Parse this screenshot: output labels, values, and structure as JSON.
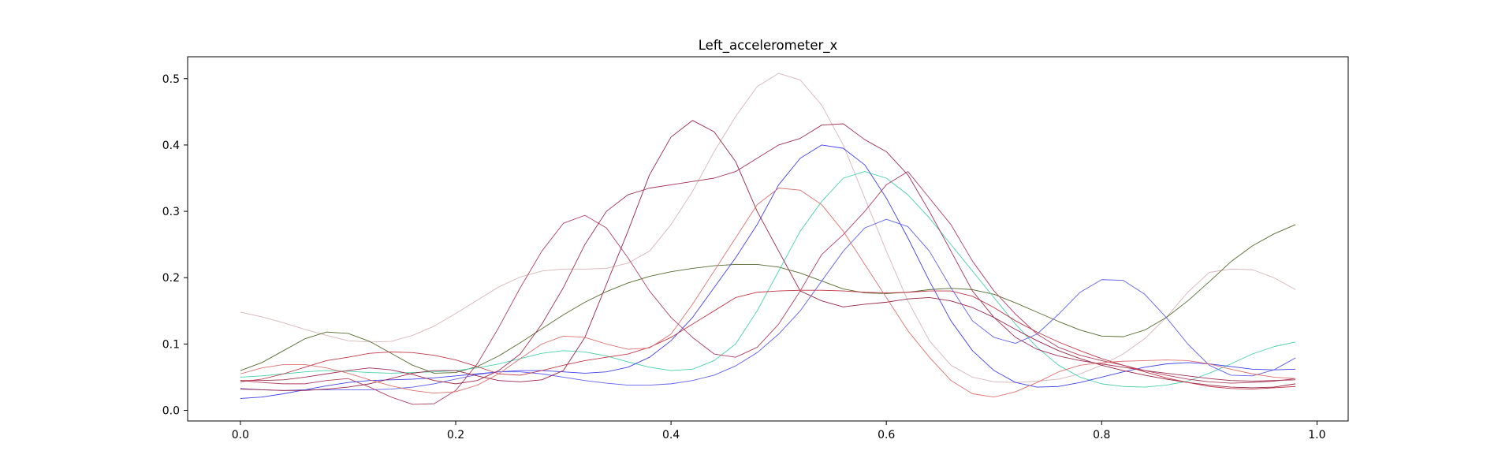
{
  "chart_data": {
    "type": "line",
    "title": "Left_accelerometer_x",
    "xlabel": "",
    "ylabel": "",
    "xlim": [
      -0.049,
      1.029
    ],
    "ylim": [
      -0.016,
      0.533
    ],
    "grid": false,
    "xticks": [
      0.0,
      0.2,
      0.4,
      0.6,
      0.8,
      1.0
    ],
    "xtick_labels": [
      "0.0",
      "0.2",
      "0.4",
      "0.6",
      "0.8",
      "1.0"
    ],
    "yticks": [
      0.0,
      0.1,
      0.2,
      0.3,
      0.4,
      0.5
    ],
    "ytick_labels": [
      "0.0",
      "0.1",
      "0.2",
      "0.3",
      "0.4",
      "0.5"
    ],
    "x": [
      0.0,
      0.02,
      0.04,
      0.06,
      0.08,
      0.1,
      0.12,
      0.14,
      0.16,
      0.18,
      0.2,
      0.22,
      0.24,
      0.26,
      0.28,
      0.3,
      0.32,
      0.34,
      0.36,
      0.38,
      0.4,
      0.42,
      0.44,
      0.46,
      0.48,
      0.5,
      0.52,
      0.54,
      0.56,
      0.58,
      0.6,
      0.62,
      0.64,
      0.66,
      0.68,
      0.7,
      0.72,
      0.74,
      0.76,
      0.78,
      0.8,
      0.82,
      0.84,
      0.86,
      0.88,
      0.9,
      0.92,
      0.94,
      0.96,
      0.98
    ],
    "series": [
      {
        "color": "#d8b4b8",
        "values": [
          0.148,
          0.141,
          0.132,
          0.122,
          0.113,
          0.105,
          0.103,
          0.104,
          0.113,
          0.127,
          0.146,
          0.166,
          0.186,
          0.201,
          0.21,
          0.213,
          0.213,
          0.214,
          0.222,
          0.24,
          0.28,
          0.33,
          0.39,
          0.443,
          0.488,
          0.508,
          0.498,
          0.46,
          0.4,
          0.32,
          0.24,
          0.165,
          0.105,
          0.068,
          0.05,
          0.043,
          0.042,
          0.044,
          0.047,
          0.055,
          0.068,
          0.085,
          0.108,
          0.14,
          0.178,
          0.208,
          0.213,
          0.212,
          0.2,
          0.182
        ]
      },
      {
        "color": "#556b2f",
        "values": [
          0.06,
          0.072,
          0.09,
          0.108,
          0.118,
          0.116,
          0.104,
          0.086,
          0.068,
          0.056,
          0.057,
          0.066,
          0.082,
          0.102,
          0.123,
          0.144,
          0.163,
          0.179,
          0.192,
          0.202,
          0.209,
          0.214,
          0.218,
          0.22,
          0.22,
          0.216,
          0.207,
          0.195,
          0.183,
          0.177,
          0.176,
          0.178,
          0.182,
          0.184,
          0.182,
          0.175,
          0.162,
          0.148,
          0.134,
          0.121,
          0.112,
          0.111,
          0.121,
          0.14,
          0.165,
          0.194,
          0.224,
          0.248,
          0.266,
          0.28
        ]
      },
      {
        "color": "#48d1a8",
        "values": [
          0.05,
          0.052,
          0.055,
          0.058,
          0.06,
          0.059,
          0.057,
          0.056,
          0.057,
          0.058,
          0.06,
          0.064,
          0.07,
          0.078,
          0.086,
          0.09,
          0.088,
          0.082,
          0.073,
          0.065,
          0.06,
          0.062,
          0.075,
          0.1,
          0.15,
          0.21,
          0.27,
          0.315,
          0.35,
          0.36,
          0.35,
          0.325,
          0.29,
          0.25,
          0.21,
          0.17,
          0.13,
          0.095,
          0.068,
          0.05,
          0.04,
          0.036,
          0.035,
          0.038,
          0.044,
          0.056,
          0.07,
          0.085,
          0.096,
          0.103
        ]
      },
      {
        "color": "#4040ee",
        "values": [
          0.018,
          0.02,
          0.025,
          0.031,
          0.037,
          0.042,
          0.045,
          0.046,
          0.047,
          0.049,
          0.052,
          0.055,
          0.058,
          0.06,
          0.06,
          0.058,
          0.056,
          0.058,
          0.065,
          0.08,
          0.105,
          0.14,
          0.185,
          0.23,
          0.28,
          0.34,
          0.38,
          0.4,
          0.395,
          0.37,
          0.32,
          0.26,
          0.195,
          0.135,
          0.09,
          0.06,
          0.042,
          0.035,
          0.036,
          0.042,
          0.05,
          0.058,
          0.065,
          0.07,
          0.072,
          0.07,
          0.066,
          0.062,
          0.061,
          0.062
        ]
      },
      {
        "color": "#6060ee",
        "values": [
          0.033,
          0.031,
          0.03,
          0.031,
          0.031,
          0.031,
          0.031,
          0.032,
          0.035,
          0.04,
          0.047,
          0.054,
          0.058,
          0.058,
          0.055,
          0.05,
          0.045,
          0.041,
          0.038,
          0.038,
          0.04,
          0.045,
          0.053,
          0.067,
          0.087,
          0.115,
          0.15,
          0.195,
          0.24,
          0.275,
          0.288,
          0.277,
          0.24,
          0.185,
          0.135,
          0.11,
          0.101,
          0.115,
          0.145,
          0.178,
          0.197,
          0.196,
          0.175,
          0.14,
          0.1,
          0.068,
          0.053,
          0.052,
          0.061,
          0.079
        ]
      },
      {
        "color": "#b04060",
        "values": [
          0.045,
          0.042,
          0.04,
          0.04,
          0.045,
          0.048,
          0.035,
          0.02,
          0.009,
          0.01,
          0.03,
          0.07,
          0.125,
          0.185,
          0.24,
          0.282,
          0.294,
          0.275,
          0.23,
          0.18,
          0.14,
          0.11,
          0.085,
          0.08,
          0.095,
          0.13,
          0.18,
          0.235,
          0.265,
          0.3,
          0.34,
          0.36,
          0.32,
          0.28,
          0.225,
          0.18,
          0.145,
          0.115,
          0.095,
          0.083,
          0.075,
          0.068,
          0.06,
          0.053,
          0.047,
          0.043,
          0.041,
          0.042,
          0.044,
          0.048
        ]
      },
      {
        "color": "#a03050",
        "values": [
          0.045,
          0.045,
          0.046,
          0.05,
          0.055,
          0.06,
          0.064,
          0.061,
          0.054,
          0.045,
          0.04,
          0.045,
          0.06,
          0.085,
          0.13,
          0.185,
          0.25,
          0.3,
          0.325,
          0.335,
          0.34,
          0.345,
          0.35,
          0.36,
          0.38,
          0.4,
          0.41,
          0.43,
          0.432,
          0.408,
          0.39,
          0.355,
          0.3,
          0.24,
          0.18,
          0.14,
          0.11,
          0.092,
          0.082,
          0.075,
          0.07,
          0.065,
          0.06,
          0.056,
          0.052,
          0.048,
          0.045,
          0.044,
          0.045,
          0.046
        ]
      },
      {
        "color": "#9a2545",
        "values": [
          0.032,
          0.031,
          0.03,
          0.03,
          0.032,
          0.035,
          0.04,
          0.048,
          0.056,
          0.06,
          0.06,
          0.052,
          0.045,
          0.043,
          0.046,
          0.06,
          0.11,
          0.19,
          0.27,
          0.355,
          0.412,
          0.437,
          0.42,
          0.375,
          0.3,
          0.24,
          0.18,
          0.165,
          0.156,
          0.16,
          0.163,
          0.168,
          0.17,
          0.165,
          0.155,
          0.14,
          0.122,
          0.105,
          0.09,
          0.078,
          0.068,
          0.06,
          0.053,
          0.047,
          0.042,
          0.038,
          0.035,
          0.034,
          0.035,
          0.04
        ]
      },
      {
        "color": "#c03848",
        "values": [
          0.043,
          0.047,
          0.055,
          0.065,
          0.075,
          0.08,
          0.086,
          0.088,
          0.087,
          0.083,
          0.076,
          0.066,
          0.055,
          0.053,
          0.06,
          0.068,
          0.075,
          0.08,
          0.085,
          0.095,
          0.11,
          0.13,
          0.15,
          0.17,
          0.178,
          0.18,
          0.181,
          0.181,
          0.18,
          0.178,
          0.177,
          0.178,
          0.18,
          0.18,
          0.172,
          0.155,
          0.135,
          0.118,
          0.103,
          0.09,
          0.078,
          0.068,
          0.058,
          0.049,
          0.042,
          0.036,
          0.033,
          0.032,
          0.034,
          0.036
        ]
      },
      {
        "color": "#e07070",
        "values": [
          0.055,
          0.064,
          0.069,
          0.069,
          0.064,
          0.056,
          0.046,
          0.037,
          0.03,
          0.026,
          0.028,
          0.038,
          0.055,
          0.078,
          0.1,
          0.112,
          0.11,
          0.1,
          0.092,
          0.094,
          0.115,
          0.16,
          0.21,
          0.26,
          0.31,
          0.335,
          0.332,
          0.31,
          0.27,
          0.22,
          0.17,
          0.12,
          0.08,
          0.045,
          0.025,
          0.02,
          0.028,
          0.042,
          0.058,
          0.068,
          0.072,
          0.074,
          0.075,
          0.076,
          0.075,
          0.07,
          0.062,
          0.055,
          0.05,
          0.048
        ]
      }
    ]
  }
}
